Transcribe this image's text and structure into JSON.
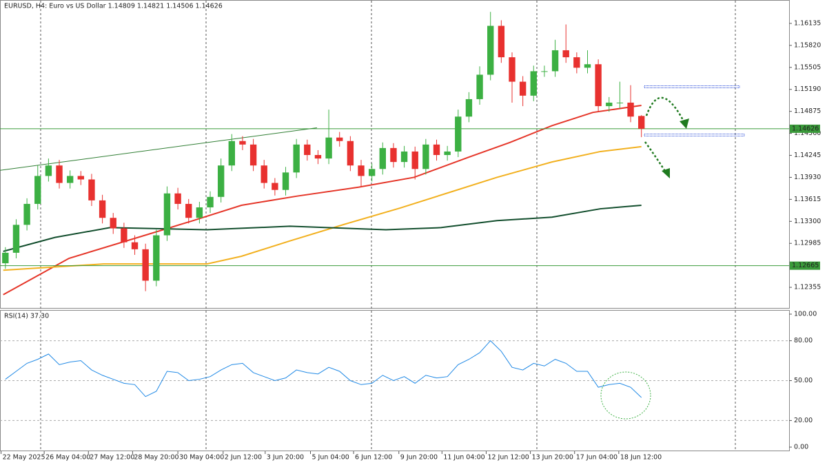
{
  "chart_data": [
    {
      "type": "candlestick",
      "title": "EURUSD, H4:  Euro vs US Dollar  1.14809 1.14821 1.14506 1.14626",
      "open": [
        1.127,
        1.1285,
        1.1325,
        1.1355,
        1.1395,
        1.141,
        1.1385,
        1.1395,
        1.139,
        1.136,
        1.1335,
        1.132,
        1.13,
        1.129,
        1.1245,
        1.131,
        1.137,
        1.1355,
        1.1335,
        1.135,
        1.1365,
        1.141,
        1.1445,
        1.144,
        1.141,
        1.1385,
        1.1375,
        1.14,
        1.144,
        1.1425,
        1.142,
        1.145,
        1.1445,
        1.141,
        1.1395,
        1.1405,
        1.1435,
        1.1415,
        1.143,
        1.1405,
        1.144,
        1.1425,
        1.143,
        1.148,
        1.1505,
        1.154,
        1.161,
        1.1565,
        1.153,
        1.151,
        1.1545,
        1.1545,
        1.1575,
        1.1565,
        1.155,
        1.1555,
        1.1495,
        1.15,
        1.15,
        1.14809
      ],
      "high": [
        1.1293,
        1.1333,
        1.1363,
        1.141,
        1.142,
        1.1418,
        1.1403,
        1.1402,
        1.1398,
        1.1368,
        1.1342,
        1.1328,
        1.131,
        1.1298,
        1.1318,
        1.138,
        1.1378,
        1.1362,
        1.1358,
        1.1373,
        1.142,
        1.1455,
        1.1452,
        1.1448,
        1.1418,
        1.1392,
        1.1408,
        1.1448,
        1.1447,
        1.1432,
        1.149,
        1.1458,
        1.1452,
        1.1418,
        1.1413,
        1.1443,
        1.1442,
        1.1438,
        1.1437,
        1.1448,
        1.1447,
        1.1438,
        1.149,
        1.1515,
        1.1552,
        1.163,
        1.1618,
        1.1572,
        1.1538,
        1.1553,
        1.1553,
        1.159,
        1.1612,
        1.1572,
        1.1575,
        1.1562,
        1.1508,
        1.153,
        1.1525,
        1.14821
      ],
      "low": [
        1.1262,
        1.1277,
        1.1317,
        1.1347,
        1.1387,
        1.1377,
        1.1377,
        1.1382,
        1.1352,
        1.1327,
        1.1312,
        1.1292,
        1.1282,
        1.123,
        1.1237,
        1.1302,
        1.1347,
        1.1327,
        1.1327,
        1.1342,
        1.1357,
        1.1402,
        1.1432,
        1.1402,
        1.1377,
        1.1367,
        1.1367,
        1.1392,
        1.1417,
        1.1412,
        1.1412,
        1.1437,
        1.1402,
        1.138,
        1.1387,
        1.1397,
        1.1407,
        1.1407,
        1.139,
        1.1397,
        1.1417,
        1.1417,
        1.1422,
        1.1472,
        1.1497,
        1.1532,
        1.1557,
        1.15,
        1.1495,
        1.1502,
        1.1537,
        1.1537,
        1.1557,
        1.1542,
        1.1542,
        1.1487,
        1.1487,
        1.1492,
        1.1472,
        1.14506
      ],
      "close": [
        1.1285,
        1.1325,
        1.1355,
        1.1395,
        1.141,
        1.1385,
        1.1395,
        1.139,
        1.136,
        1.1335,
        1.132,
        1.13,
        1.129,
        1.1245,
        1.131,
        1.137,
        1.1355,
        1.1335,
        1.135,
        1.1365,
        1.141,
        1.1445,
        1.144,
        1.141,
        1.1385,
        1.1375,
        1.14,
        1.144,
        1.1425,
        1.142,
        1.145,
        1.1445,
        1.141,
        1.1395,
        1.1405,
        1.1435,
        1.1415,
        1.143,
        1.1405,
        1.144,
        1.1425,
        1.143,
        1.148,
        1.1505,
        1.154,
        1.161,
        1.1565,
        1.153,
        1.151,
        1.1545,
        1.1545,
        1.1575,
        1.1565,
        1.155,
        1.1555,
        1.1495,
        1.15,
        1.15,
        1.148,
        1.14626
      ],
      "up_color": "#3cb043",
      "down_color": "#e8312f",
      "lines": [
        {
          "color": "#e53528",
          "x": [
            -0.2,
            5.9,
            12.3,
            17.4,
            21.9,
            27.0,
            32.8,
            37.9,
            43.0,
            46.8,
            50.7,
            54.5,
            59
          ],
          "values": [
            1.1225,
            1.1277,
            1.1307,
            1.1331,
            1.1353,
            1.1366,
            1.1379,
            1.1393,
            1.1422,
            1.1443,
            1.1467,
            1.1486,
            1.1496
          ]
        },
        {
          "color": "#f2b01e",
          "x": [
            -0.2,
            9.1,
            18.7,
            21.9,
            26.4,
            31.5,
            36.6,
            41.1,
            45.6,
            50.7,
            55.2,
            59
          ],
          "values": [
            1.126,
            1.1269,
            1.1269,
            1.128,
            1.1302,
            1.1326,
            1.1349,
            1.1371,
            1.1393,
            1.1415,
            1.143,
            1.1437
          ]
        },
        {
          "color": "#114d2c",
          "x": [
            -0.2,
            4.6,
            9.7,
            18.7,
            26.4,
            35.3,
            40.4,
            45.6,
            50.7,
            55.2,
            59
          ],
          "values": [
            1.1287,
            1.1307,
            1.1321,
            1.1318,
            1.1323,
            1.1318,
            1.1321,
            1.1331,
            1.1336,
            1.1348,
            1.1353
          ]
        },
        {
          "color": "#2e7d32",
          "x": [
            -0.5,
            28.9
          ],
          "values": [
            1.1403,
            1.1464
          ]
        }
      ],
      "hlines": [
        1.14626,
        1.12665
      ],
      "hline_color": "#3a9a3a",
      "xlim": [
        -0.5,
        72.7
      ],
      "ylim": [
        1.1205,
        1.1647
      ],
      "yticks": [
        1.16135,
        {
          "value": 1.1582,
          "label": "1.15820"
        },
        1.15505,
        {
          "value": 1.1519,
          "label": "1.15190"
        },
        1.14875,
        {
          "value": 1.1456,
          "label": "1.14560"
        },
        1.14245,
        {
          "value": 1.1393,
          "label": "1.13930"
        },
        1.13615,
        {
          "value": 1.133,
          "label": "1.13300"
        },
        1.12985,
        1.12355
      ],
      "xticks": [
        {
          "value": -0.4,
          "label": "22 May 2025"
        },
        {
          "value": 3.6,
          "label": "26 May 04:00"
        },
        {
          "value": 7.7,
          "label": "27 May 12:00"
        },
        {
          "value": 11.8,
          "label": "28 May 20:00"
        },
        {
          "value": 16.0,
          "label": "30 May 04:00"
        },
        {
          "value": 20.2,
          "label": "2 Jun 12:00"
        },
        {
          "value": 24.1,
          "label": "3 Jun 20:00"
        },
        {
          "value": 28.3,
          "label": "5 Jun 04:00"
        },
        {
          "value": 32.3,
          "label": "6 Jun 12:00"
        },
        {
          "value": 36.5,
          "label": "9 Jun 20:00"
        },
        {
          "value": 40.5,
          "label": "11 Jun 04:00"
        },
        {
          "value": 44.6,
          "label": "12 Jun 12:00"
        },
        {
          "value": 48.7,
          "label": "13 Jun 20:00"
        },
        {
          "value": 52.8,
          "label": "17 Jun 04:00"
        },
        {
          "value": 56.9,
          "label": "18 Jun 12:00"
        }
      ]
    },
    {
      "type": "line",
      "title": "RSI(14) 37.30",
      "series": [
        {
          "color": "#1e88e5",
          "values": [
            51,
            57,
            63,
            66,
            70,
            62,
            64,
            65,
            58,
            54,
            51,
            48,
            47,
            38,
            42,
            57,
            56,
            50,
            51,
            53,
            58,
            62,
            63,
            56,
            53,
            50,
            52,
            58,
            56,
            55,
            60,
            57,
            50,
            47,
            48,
            54,
            50,
            53,
            48,
            54,
            52,
            53,
            62,
            66,
            71,
            80,
            72,
            60,
            58,
            63,
            61,
            66,
            63,
            57,
            57,
            45,
            47,
            48,
            45,
            37.3
          ]
        }
      ],
      "xlim": [
        -0.5,
        72.7
      ],
      "ylim": [
        -3.1,
        103.1
      ],
      "yticks": [
        {
          "value": 0,
          "label": "0.00"
        },
        {
          "value": 20,
          "label": "20.00"
        },
        {
          "value": 50,
          "label": "50.00"
        },
        {
          "value": 80,
          "label": "80.00"
        },
        {
          "value": 100,
          "label": "100.00"
        }
      ]
    }
  ]
}
